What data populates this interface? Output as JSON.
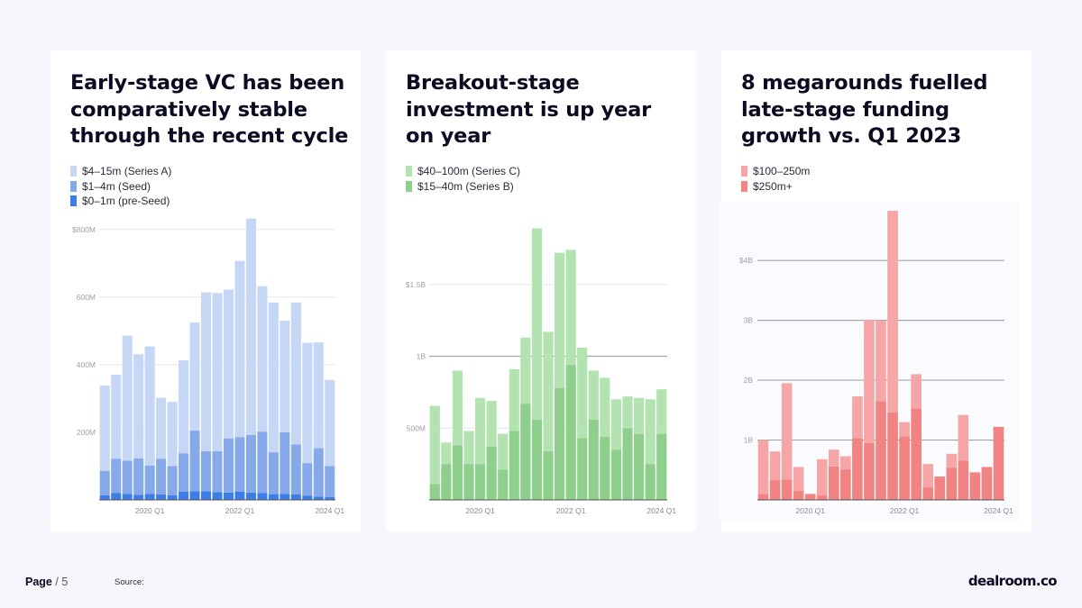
{
  "panels": [
    {
      "title": "Early-stage VC has been comparatively stable through the recent cycle",
      "legend": [
        {
          "label": "$4–15m (Series A)",
          "color": "#c5d7f4"
        },
        {
          "label": "$1–4m (Seed)",
          "color": "#86aae9"
        },
        {
          "label": "$0–1m (pre-Seed)",
          "color": "#3d7de8"
        }
      ]
    },
    {
      "title": "Breakout-stage investment is up year on year",
      "legend": [
        {
          "label": "$40–100m (Series C)",
          "color": "#b2e3b0"
        },
        {
          "label": "$15–40m (Series B)",
          "color": "#8dcf8b"
        }
      ]
    },
    {
      "title": "8 megarounds fuelled late-stage funding growth vs. Q1 2023",
      "legend": [
        {
          "label": "$100–250m",
          "color": "#f6a6a6"
        },
        {
          "label": "$250m+",
          "color": "#f18383"
        }
      ]
    }
  ],
  "chart_data": [
    {
      "type": "bar",
      "stacked": true,
      "categories": [
        "2019 Q1",
        "2019 Q2",
        "2019 Q3",
        "2019 Q4",
        "2020 Q1",
        "2020 Q2",
        "2020 Q3",
        "2020 Q4",
        "2021 Q1",
        "2021 Q2",
        "2021 Q3",
        "2021 Q4",
        "2022 Q1",
        "2022 Q2",
        "2022 Q3",
        "2022 Q4",
        "2023 Q1",
        "2023 Q2",
        "2023 Q3",
        "2023 Q4",
        "2024 Q1"
      ],
      "x_tick_labels": [
        "2020 Q1",
        "2022 Q1",
        "2024 Q1"
      ],
      "x_tick_indices": [
        4,
        12,
        20
      ],
      "y_ticks": [
        {
          "value": 200,
          "label": "200M"
        },
        {
          "value": 400,
          "label": "400M"
        },
        {
          "value": 600,
          "label": "600M"
        },
        {
          "value": 800,
          "label": "$800M"
        }
      ],
      "ylim": [
        0,
        850
      ],
      "unit": "$M",
      "grid": true,
      "series": [
        {
          "name": "$0–1m (pre-Seed)",
          "color": "#3d7de8",
          "values": [
            14,
            20,
            18,
            15,
            18,
            16,
            14,
            24,
            26,
            26,
            23,
            22,
            25,
            22,
            20,
            17,
            18,
            16,
            13,
            10,
            8
          ]
        },
        {
          "name": "$1–4m (Seed)",
          "color": "#86aae9",
          "values": [
            72,
            102,
            98,
            108,
            84,
            106,
            86,
            114,
            179,
            118,
            121,
            160,
            161,
            170,
            182,
            124,
            182,
            148,
            96,
            143,
            92
          ]
        },
        {
          "name": "$4–15m (Series A)",
          "color": "#c5d7f4",
          "values": [
            252,
            248,
            370,
            308,
            352,
            180,
            190,
            275,
            320,
            470,
            468,
            440,
            521,
            640,
            430,
            443,
            330,
            420,
            356,
            313,
            255
          ]
        }
      ]
    },
    {
      "type": "bar",
      "stacked": true,
      "categories": [
        "2019 Q1",
        "2019 Q2",
        "2019 Q3",
        "2019 Q4",
        "2020 Q1",
        "2020 Q2",
        "2020 Q3",
        "2020 Q4",
        "2021 Q1",
        "2021 Q2",
        "2021 Q3",
        "2021 Q4",
        "2022 Q1",
        "2022 Q2",
        "2022 Q3",
        "2022 Q4",
        "2023 Q1",
        "2023 Q2",
        "2023 Q3",
        "2023 Q4",
        "2024 Q1"
      ],
      "x_tick_labels": [
        "2020 Q1",
        "2022 Q1",
        "2024 Q1"
      ],
      "x_tick_indices": [
        4,
        12,
        20
      ],
      "y_ticks": [
        {
          "value": 500,
          "label": "500M"
        },
        {
          "value": 1000,
          "label": "1B"
        },
        {
          "value": 1500,
          "label": "$1.5B"
        }
      ],
      "ylim": [
        0,
        2000
      ],
      "unit": "$M",
      "grid": true,
      "series": [
        {
          "name": "$15–40m (Series B)",
          "color": "#8dcf8b",
          "values": [
            110,
            250,
            380,
            250,
            250,
            370,
            210,
            480,
            670,
            560,
            340,
            780,
            940,
            430,
            560,
            440,
            350,
            500,
            460,
            250,
            460
          ]
        },
        {
          "name": "$40–100m (Series C)",
          "color": "#b2e3b0",
          "values": [
            545,
            150,
            520,
            230,
            460,
            320,
            250,
            430,
            460,
            1330,
            830,
            940,
            800,
            630,
            340,
            410,
            350,
            220,
            250,
            450,
            310
          ]
        }
      ]
    },
    {
      "type": "bar",
      "stacked": true,
      "categories": [
        "2019 Q1",
        "2019 Q2",
        "2019 Q3",
        "2019 Q4",
        "2020 Q1",
        "2020 Q2",
        "2020 Q3",
        "2020 Q4",
        "2021 Q1",
        "2021 Q2",
        "2021 Q3",
        "2021 Q4",
        "2022 Q1",
        "2022 Q2",
        "2022 Q3",
        "2022 Q4",
        "2023 Q1",
        "2023 Q2",
        "2023 Q3",
        "2023 Q4",
        "2024 Q1"
      ],
      "x_tick_labels": [
        "2020 Q1",
        "2022 Q1",
        "2024 Q1"
      ],
      "x_tick_indices": [
        4,
        12,
        20
      ],
      "y_ticks": [
        {
          "value": 1000,
          "label": "1B"
        },
        {
          "value": 2000,
          "label": "2B"
        },
        {
          "value": 3000,
          "label": "3B"
        },
        {
          "value": 4000,
          "label": "$4B"
        }
      ],
      "ylim": [
        0,
        4800
      ],
      "unit": "$M",
      "grid": true,
      "series": [
        {
          "name": "$250m+",
          "color": "#f18383",
          "values": [
            100,
            330,
            340,
            150,
            100,
            80,
            560,
            510,
            1030,
            950,
            1650,
            1460,
            1060,
            1530,
            210,
            390,
            540,
            660,
            460,
            550,
            1220
          ]
        },
        {
          "name": "$100–250m",
          "color": "#f6a6a6",
          "values": [
            900,
            480,
            1610,
            400,
            0,
            600,
            280,
            220,
            700,
            2060,
            1350,
            3370,
            240,
            570,
            390,
            0,
            230,
            760,
            0,
            0,
            0
          ]
        }
      ]
    }
  ],
  "footer": {
    "page_label": "Page",
    "page_total": "/ 5",
    "source_label": "Source:",
    "logo": "dealroom.co"
  }
}
